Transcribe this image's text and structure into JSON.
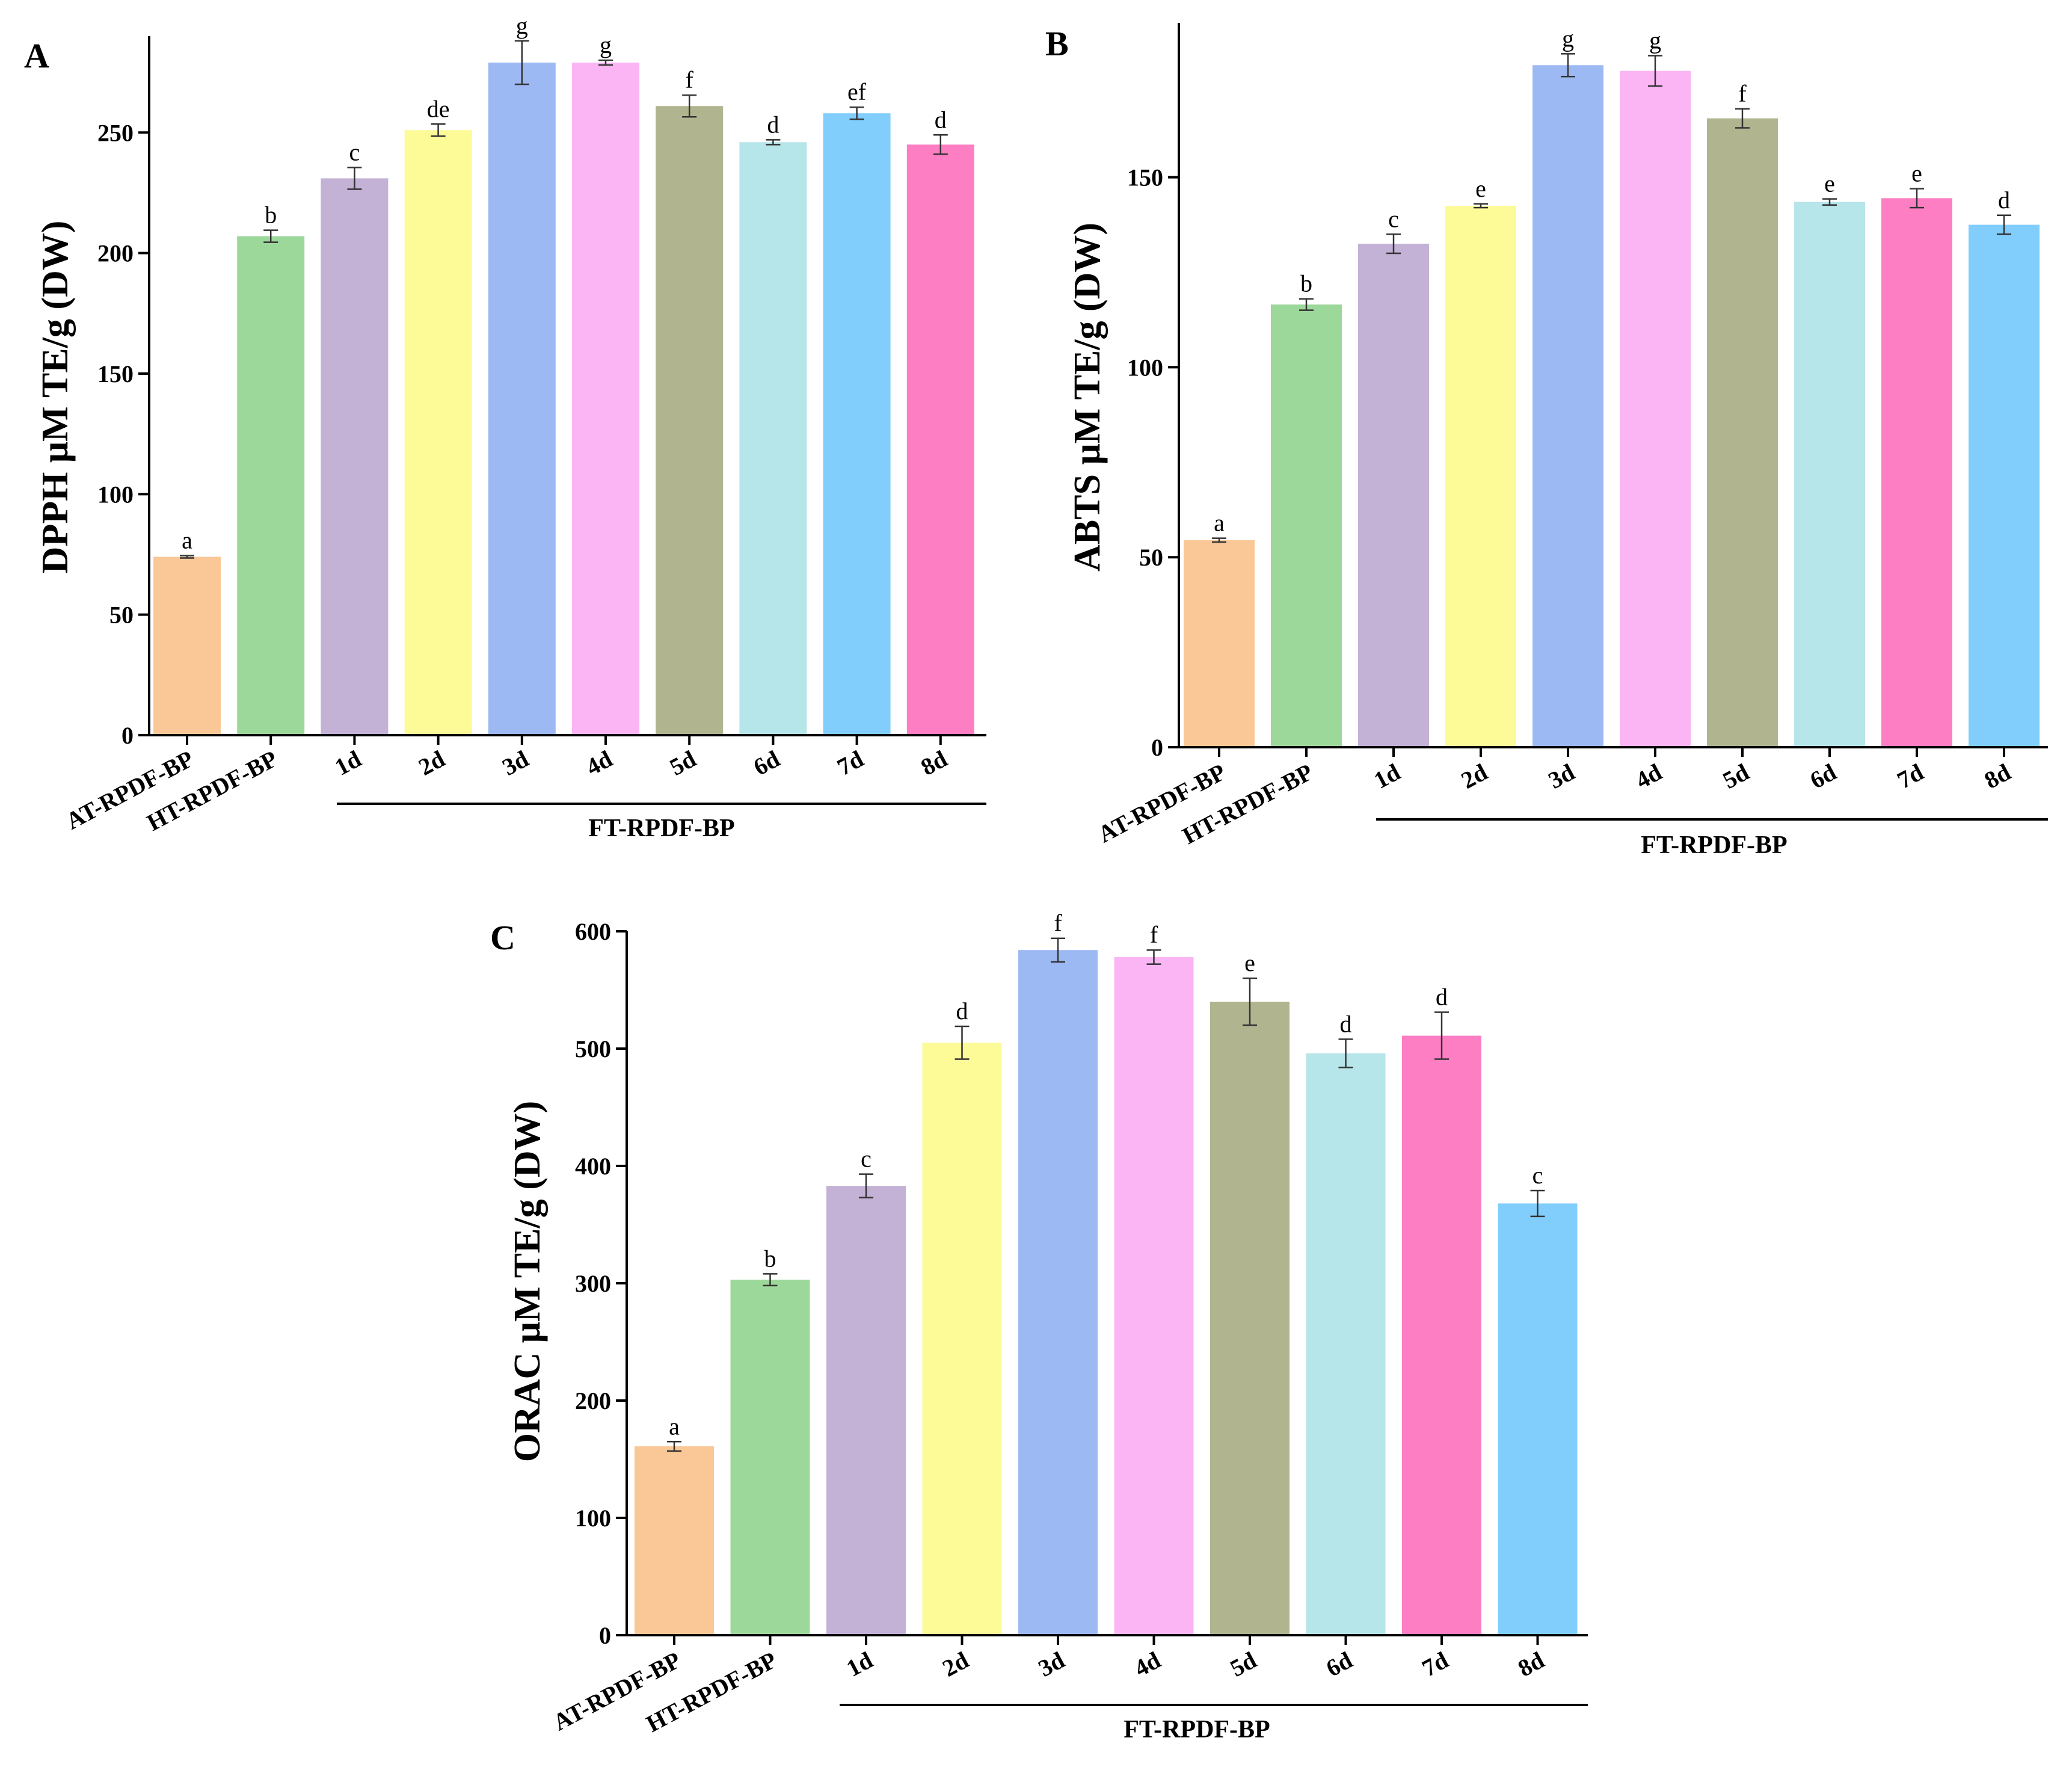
{
  "colors": [
    "#F9C896",
    "#9DD89B",
    "#C3B1D6",
    "#FDFB98",
    "#9DB9F4",
    "#FBB5F5",
    "#B1B58F",
    "#B6E5EA",
    "#81CEFD",
    "#FD7EC3"
  ],
  "chart_data": [
    {
      "type": "bar",
      "panel": "A",
      "ylabel": "DPPH μM TE/g (DW)",
      "ylim": [
        0,
        295
      ],
      "yticks": [
        0,
        50,
        100,
        150,
        200,
        250
      ],
      "categories": [
        "AT-RPDF-BP",
        "HT-RPDF-BP",
        "1d",
        "2d",
        "3d",
        "4d",
        "5d",
        "6d",
        "7d",
        "8d"
      ],
      "values": [
        74,
        207,
        231,
        251,
        279,
        279,
        261,
        246,
        258,
        245
      ],
      "errors": [
        0.5,
        2.5,
        4.5,
        2.5,
        9,
        1,
        4.5,
        1,
        2.5,
        4
      ],
      "significance": [
        "a",
        "b",
        "c",
        "de",
        "g",
        "g",
        "f",
        "d",
        "ef",
        "d"
      ],
      "bar_colors": [
        "#F9C896",
        "#9DD89B",
        "#C3B1D6",
        "#FDFB98",
        "#9DB9F4",
        "#FBB5F5",
        "#B1B58F",
        "#B6E5EA",
        "#81CEFD",
        "#FD7EC3"
      ],
      "group_label": "FT-RPDF-BP"
    },
    {
      "type": "bar",
      "panel": "B",
      "ylabel": "ABTS μM TE/g (DW)",
      "ylim": [
        0,
        190
      ],
      "yticks": [
        0,
        50,
        100,
        150
      ],
      "categories": [
        "AT-RPDF-BP",
        "HT-RPDF-BP",
        "1d",
        "2d",
        "3d",
        "4d",
        "5d",
        "6d",
        "7d",
        "8d"
      ],
      "values": [
        54.5,
        116.5,
        132.5,
        142.5,
        179.5,
        178,
        165.5,
        143.5,
        144.5,
        137.5
      ],
      "errors": [
        0.5,
        1.5,
        2.5,
        0.5,
        3,
        4,
        2.5,
        0.8,
        2.5,
        2.5
      ],
      "significance": [
        "a",
        "b",
        "c",
        "e",
        "g",
        "g",
        "f",
        "e",
        "e",
        "d"
      ],
      "bar_colors": [
        "#F9C896",
        "#9DD89B",
        "#C3B1D6",
        "#FDFB98",
        "#9DB9F4",
        "#FBB5F5",
        "#B1B58F",
        "#B6E5EA",
        "#FD7EC3",
        "#81CEFD"
      ],
      "group_label": "FT-RPDF-BP"
    },
    {
      "type": "bar",
      "panel": "C",
      "ylabel": "ORAC μM TE/g (DW)",
      "ylim": [
        0,
        600
      ],
      "yticks": [
        0,
        100,
        200,
        300,
        400,
        500,
        600
      ],
      "categories": [
        "AT-RPDF-BP",
        "HT-RPDF-BP",
        "1d",
        "2d",
        "3d",
        "4d",
        "5d",
        "6d",
        "7d",
        "8d"
      ],
      "values": [
        161,
        303,
        383,
        505,
        584,
        578,
        540,
        496,
        511,
        368
      ],
      "errors": [
        4,
        5,
        10,
        14,
        10,
        6,
        20,
        12,
        20,
        11
      ],
      "significance": [
        "a",
        "b",
        "c",
        "d",
        "f",
        "f",
        "e",
        "d",
        "d",
        "c"
      ],
      "bar_colors": [
        "#F9C896",
        "#9DD89B",
        "#C3B1D6",
        "#FDFB98",
        "#9DB9F4",
        "#FBB5F5",
        "#B1B58F",
        "#B6E5EA",
        "#FD7EC3",
        "#81CEFD"
      ],
      "group_label": "FT-RPDF-BP"
    }
  ]
}
